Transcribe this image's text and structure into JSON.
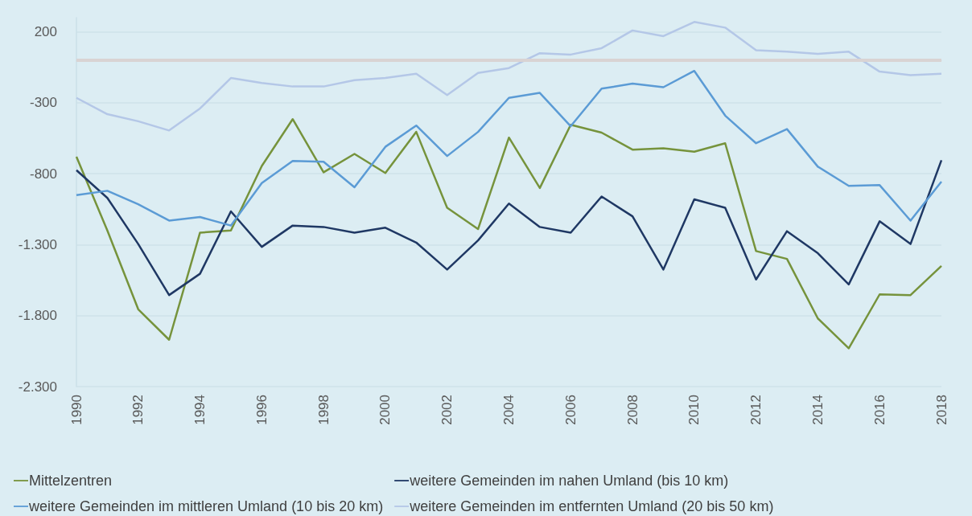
{
  "chart_data": {
    "type": "line",
    "x": [
      1990,
      1991,
      1992,
      1993,
      1994,
      1995,
      1996,
      1997,
      1998,
      1999,
      2000,
      2001,
      2002,
      2003,
      2004,
      2005,
      2006,
      2007,
      2008,
      2009,
      2010,
      2011,
      2012,
      2013,
      2014,
      2015,
      2016,
      2017,
      2018
    ],
    "series": [
      {
        "name": "Mittelzentren",
        "color": "#76933c",
        "values": [
          -680,
          -1200,
          -1755,
          -1970,
          -1215,
          -1200,
          -745,
          -415,
          -790,
          -660,
          -795,
          -505,
          -1040,
          -1190,
          -545,
          -900,
          -455,
          -510,
          -630,
          -620,
          -645,
          -585,
          -1345,
          -1400,
          -1820,
          -2030,
          -1650,
          -1655,
          -1450
        ]
      },
      {
        "name": "weitere Gemeinden im nahen Umland (bis 10 km)",
        "color": "#1f3864",
        "values": [
          -775,
          -970,
          -1295,
          -1655,
          -1505,
          -1065,
          -1315,
          -1165,
          -1175,
          -1215,
          -1180,
          -1285,
          -1475,
          -1270,
          -1010,
          -1175,
          -1215,
          -960,
          -1100,
          -1475,
          -980,
          -1040,
          -1545,
          -1205,
          -1360,
          -1580,
          -1135,
          -1295,
          -705
        ]
      },
      {
        "name": "weitere Gemeinden im mittleren Umland (10 bis 20 km)",
        "color": "#5b9bd5",
        "values": [
          -950,
          -920,
          -1015,
          -1130,
          -1105,
          -1165,
          -865,
          -710,
          -715,
          -895,
          -610,
          -460,
          -675,
          -505,
          -265,
          -230,
          -465,
          -200,
          -165,
          -190,
          -75,
          -390,
          -585,
          -485,
          -750,
          -885,
          -880,
          -1130,
          -855
        ]
      },
      {
        "name": "weitere Gemeinden im entfernten Umland (20 bis 50 km)",
        "color": "#b4c7e7",
        "values": [
          -265,
          -380,
          -430,
          -495,
          -340,
          -125,
          -160,
          -185,
          -185,
          -140,
          -125,
          -95,
          -245,
          -90,
          -55,
          50,
          40,
          85,
          210,
          170,
          270,
          230,
          70,
          60,
          45,
          60,
          -80,
          -105,
          -95
        ]
      }
    ],
    "xlim": [
      1990,
      2018
    ],
    "xticks": [
      1990,
      1992,
      1994,
      1996,
      1998,
      2000,
      2002,
      2004,
      2006,
      2008,
      2010,
      2012,
      2014,
      2016,
      2018
    ],
    "ylim": [
      -2300,
      300
    ],
    "yticks": [
      {
        "value": -2300,
        "label": "-2.300"
      },
      {
        "value": -1800,
        "label": "-1.800"
      },
      {
        "value": -1300,
        "label": "-1.300"
      },
      -800,
      -300,
      200
    ],
    "ref_lines": [
      {
        "axis": "y",
        "value": 0,
        "color": "#d9d3d3"
      }
    ],
    "grid": "y",
    "legend": "bottom",
    "marker": "none",
    "line_style": "solid"
  }
}
